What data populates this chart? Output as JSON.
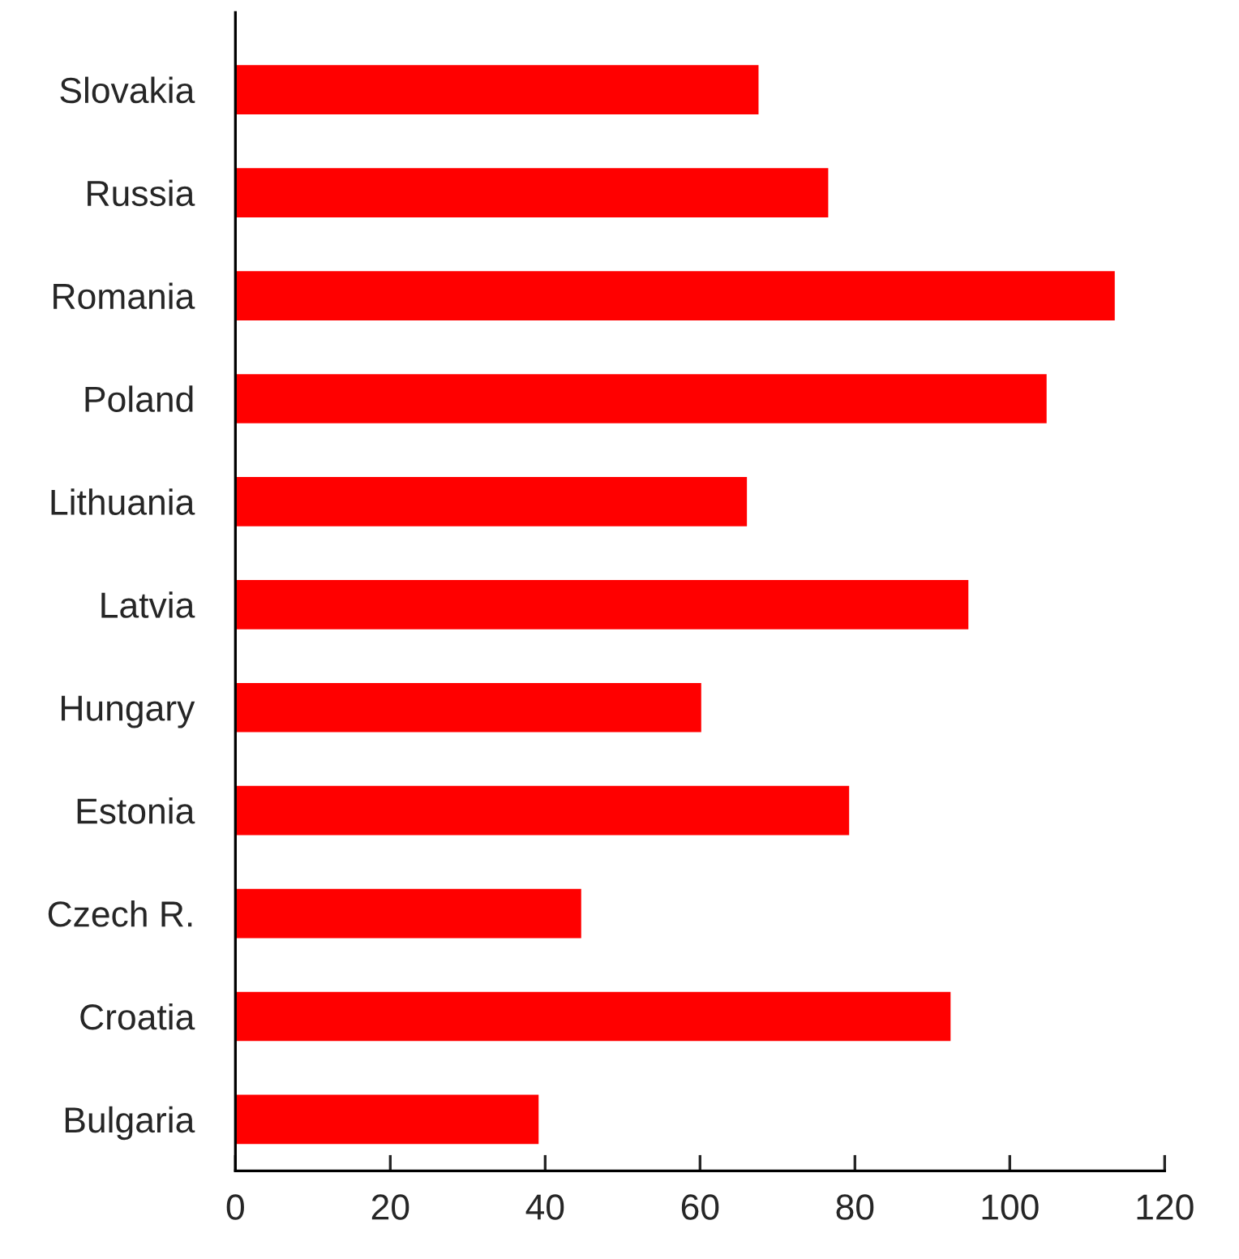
{
  "chart_data": {
    "type": "bar",
    "orientation": "horizontal",
    "categories": [
      "Slovakia",
      "Russia",
      "Romania",
      "Poland",
      "Lithuania",
      "Latvia",
      "Hungary",
      "Estonia",
      "Czech R.",
      "Croatia",
      "Bulgaria"
    ],
    "values": [
      67.7,
      76.7,
      113.7,
      104.9,
      66.2,
      94.8,
      60.3,
      79.4,
      44.8,
      92.5,
      39.3
    ],
    "color": "#ff0000",
    "xlim": [
      0,
      120
    ],
    "xticks": [
      0,
      20,
      40,
      60,
      80,
      100,
      120
    ],
    "grid": false,
    "legend": false
  }
}
